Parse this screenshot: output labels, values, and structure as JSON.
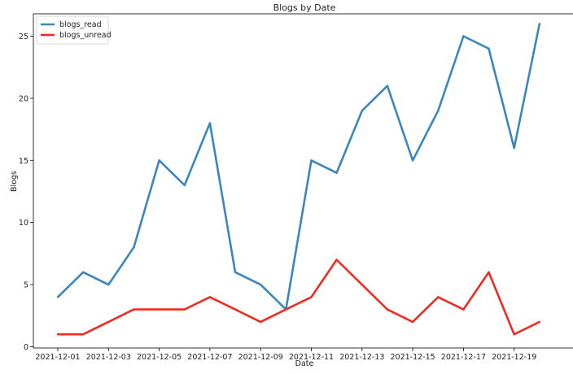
{
  "chart_data": {
    "type": "line",
    "title": "Blogs by Date",
    "xlabel": "Date",
    "ylabel": "Blogs",
    "x": [
      "2021-12-01",
      "2021-12-02",
      "2021-12-03",
      "2021-12-04",
      "2021-12-05",
      "2021-12-06",
      "2021-12-07",
      "2021-12-08",
      "2021-12-09",
      "2021-12-10",
      "2021-12-11",
      "2021-12-12",
      "2021-12-13",
      "2021-12-14",
      "2021-12-15",
      "2021-12-16",
      "2021-12-17",
      "2021-12-18",
      "2021-12-19",
      "2021-12-20"
    ],
    "x_ticks": [
      "2021-12-01",
      "2021-12-03",
      "2021-12-05",
      "2021-12-07",
      "2021-12-09",
      "2021-12-11",
      "2021-12-13",
      "2021-12-15",
      "2021-12-17",
      "2021-12-19"
    ],
    "y_ticks": [
      0,
      5,
      10,
      15,
      20,
      25
    ],
    "ylim": [
      -0.1,
      26.8
    ],
    "grid": false,
    "legend_position": "top-left",
    "series": [
      {
        "name": "blogs_read",
        "color": "#3a87bd",
        "values": [
          4,
          6,
          5,
          8,
          15,
          13,
          18,
          6,
          5,
          3,
          15,
          14,
          19,
          21,
          15,
          19,
          25,
          24,
          16,
          26
        ]
      },
      {
        "name": "blogs_unread",
        "color": "#ef2b23",
        "values": [
          1,
          1,
          2,
          3,
          3,
          3,
          4,
          3,
          2,
          3,
          4,
          7,
          5,
          3,
          2,
          4,
          3,
          6,
          1,
          2
        ]
      }
    ]
  }
}
